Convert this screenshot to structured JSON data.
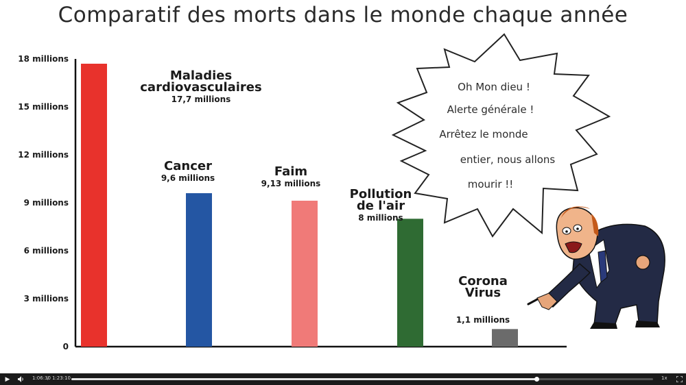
{
  "video": {
    "title": "Comparatif des morts dans le monde chaque année",
    "bubble_lines": [
      "Oh Mon dieu !",
      "Alerte générale !",
      "Arrêtez le monde",
      "entier, nous allons",
      "mourir !!"
    ]
  },
  "player": {
    "current_time": "1:06:30",
    "separator": "/",
    "duration": "1:23:10",
    "progress": 0.8,
    "speed_label": "1x",
    "play_icon": "play-icon",
    "volume_icon": "volume-icon",
    "fullscreen_icon": "fullscreen-icon"
  },
  "chart_data": {
    "type": "bar",
    "title": "Comparatif des morts dans le monde chaque année",
    "ylim": [
      0,
      18
    ],
    "yticks": [
      {
        "value": 18,
        "label": "18 millions"
      },
      {
        "value": 15,
        "label": "15 millions"
      },
      {
        "value": 12,
        "label": "12 millions"
      },
      {
        "value": 9,
        "label": "9 millions"
      },
      {
        "value": 6,
        "label": "6 millions"
      },
      {
        "value": 3,
        "label": "3 millions"
      },
      {
        "value": 0,
        "label": "0"
      }
    ],
    "bars": [
      {
        "name_lines": [
          "Maladies",
          "cardiovasculaires"
        ],
        "value_label": "17,7 millions",
        "value": 17.7,
        "color": "#e8322c"
      },
      {
        "name_lines": [
          "Cancer"
        ],
        "value_label": "9,6 millions",
        "value": 9.6,
        "color": "#2456a3"
      },
      {
        "name_lines": [
          "Faim"
        ],
        "value_label": "9,13 millions",
        "value": 9.13,
        "color": "#f07a78"
      },
      {
        "name_lines": [
          "Pollution",
          "de l'air"
        ],
        "value_label": "8 millions",
        "value": 8,
        "color": "#2f6b33"
      },
      {
        "name_lines": [
          "Corona",
          "Virus"
        ],
        "value_label": "1,1 millions",
        "value": 1.1,
        "color": "#6b6b6b"
      }
    ],
    "grid": false,
    "legend": "none"
  }
}
